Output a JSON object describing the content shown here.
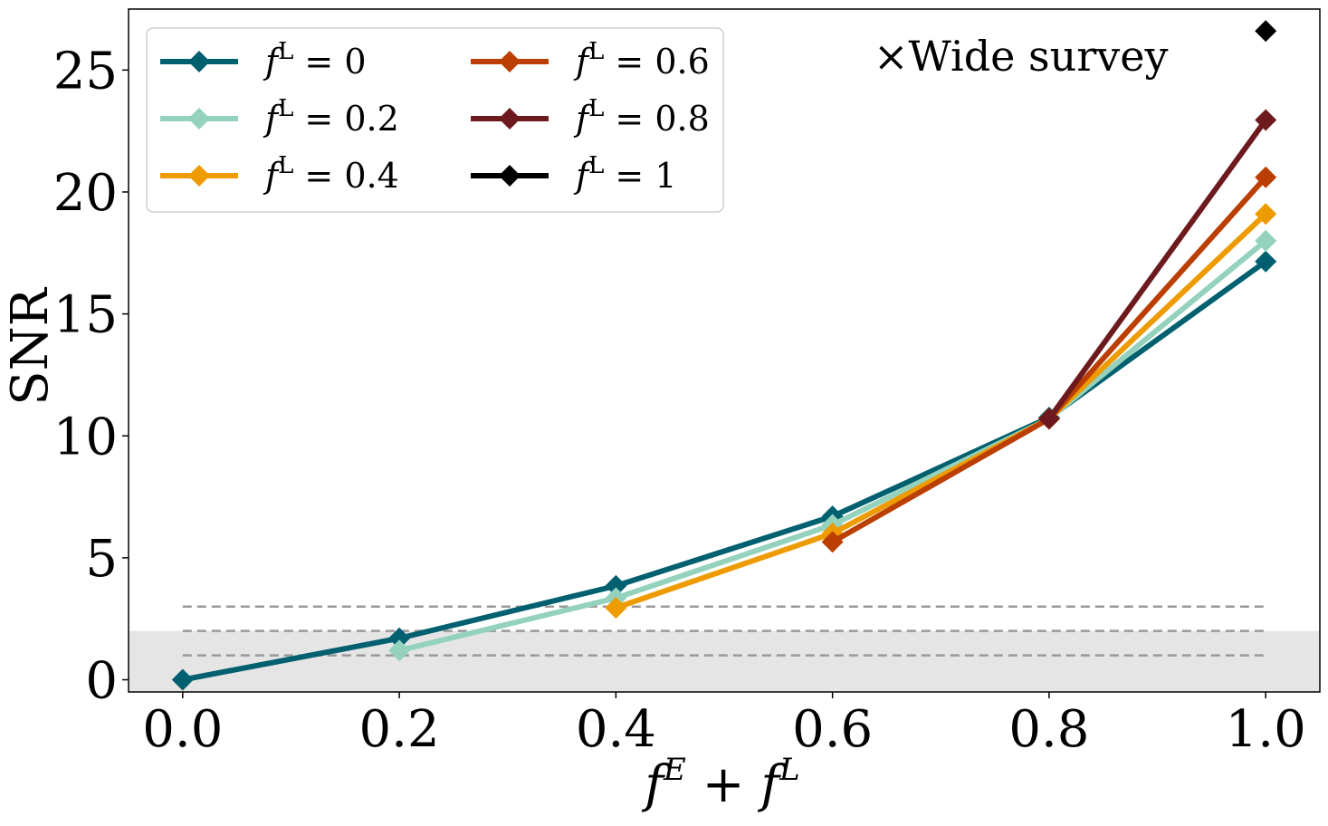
{
  "chart_data": {
    "type": "line",
    "xlabel": "f^E + f^L",
    "ylabel": "SNR",
    "xlim": [
      -0.05,
      1.05
    ],
    "ylim": [
      -0.5,
      27.5
    ],
    "xticks": [
      "0.0",
      "0.2",
      "0.4",
      "0.6",
      "0.8",
      "1.0"
    ],
    "yticks": [
      "0",
      "5",
      "10",
      "15",
      "20",
      "25"
    ],
    "grid": false,
    "legend_placement": "upper-left",
    "legend_columns": 2,
    "annotation": "×Wide survey",
    "shaded_region": {
      "y_from": -0.5,
      "y_to": 2,
      "color": "#e5e5e5"
    },
    "reference_lines": [
      {
        "y": 3,
        "style": "dashed",
        "color": "#999999"
      },
      {
        "y": 2,
        "style": "dashed",
        "color": "#999999"
      },
      {
        "y": 1,
        "style": "dashed",
        "color": "#999999"
      }
    ],
    "reference_x_range": [
      0.0,
      1.0
    ],
    "series": [
      {
        "name": "f^L = 0",
        "color": "#00606f",
        "x": [
          0.0,
          0.2,
          0.4,
          0.6,
          0.8,
          1.0
        ],
        "values": [
          0.0,
          1.7,
          3.85,
          6.7,
          10.75,
          17.15
        ]
      },
      {
        "name": "f^L = 0.2",
        "color": "#94d2bd",
        "x": [
          0.2,
          0.4,
          0.6,
          0.8,
          1.0
        ],
        "values": [
          1.2,
          3.35,
          6.35,
          10.7,
          18.0
        ]
      },
      {
        "name": "f^L = 0.4",
        "color": "#ee9b00",
        "x": [
          0.4,
          0.6,
          0.8,
          1.0
        ],
        "values": [
          2.95,
          6.0,
          10.7,
          19.1
        ]
      },
      {
        "name": "f^L = 0.6",
        "color": "#bb3e03",
        "x": [
          0.6,
          0.8,
          1.0
        ],
        "values": [
          5.65,
          10.7,
          20.6
        ]
      },
      {
        "name": "f^L = 0.8",
        "color": "#6d1a1f",
        "x": [
          0.8,
          1.0
        ],
        "values": [
          10.7,
          22.95
        ]
      },
      {
        "name": "f^L = 1",
        "color": "#000000",
        "x": [
          1.0
        ],
        "values": [
          26.6
        ]
      }
    ]
  }
}
